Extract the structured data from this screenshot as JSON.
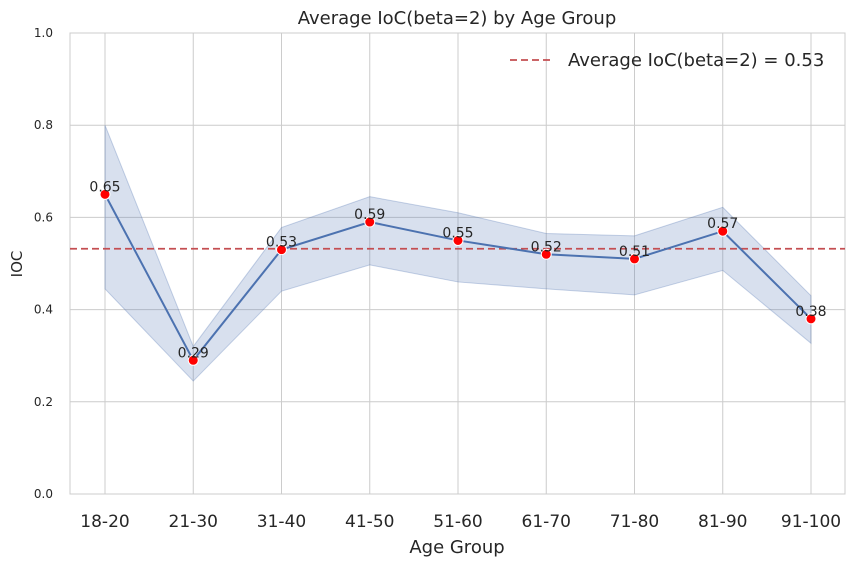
{
  "chart_data": {
    "type": "line",
    "title": "Average IoC(beta=2) by Age Group",
    "xlabel": "Age Group",
    "ylabel": "IOC",
    "ylim": [
      0,
      1
    ],
    "yticks": [
      "0.0",
      "0.2",
      "0.4",
      "0.6",
      "0.8",
      "1.0"
    ],
    "grid": true,
    "legend_position": "top-right",
    "categories": [
      "18-20",
      "21-30",
      "31-40",
      "41-50",
      "51-60",
      "61-70",
      "71-80",
      "81-90",
      "91-100"
    ],
    "series": [
      {
        "values": [
          0.65,
          0.29,
          0.53,
          0.59,
          0.55,
          0.52,
          0.51,
          0.57,
          0.38
        ],
        "data_labels": [
          "0.65",
          "0.29",
          "0.53",
          "0.59",
          "0.55",
          "0.52",
          "0.51",
          "0.57",
          "0.38"
        ],
        "ci_lower": [
          0.445,
          0.245,
          0.44,
          0.497,
          0.46,
          0.445,
          0.432,
          0.485,
          0.327
        ],
        "ci_upper": [
          0.8,
          0.32,
          0.578,
          0.645,
          0.61,
          0.565,
          0.56,
          0.622,
          0.43
        ],
        "line_color": "#4c72b0",
        "marker_color": "#ff0000",
        "band_color": "#4c72b0"
      }
    ],
    "reference_line": {
      "value": 0.532,
      "label": "Average IoC(beta=2) = 0.53",
      "color": "#c44e52"
    }
  }
}
